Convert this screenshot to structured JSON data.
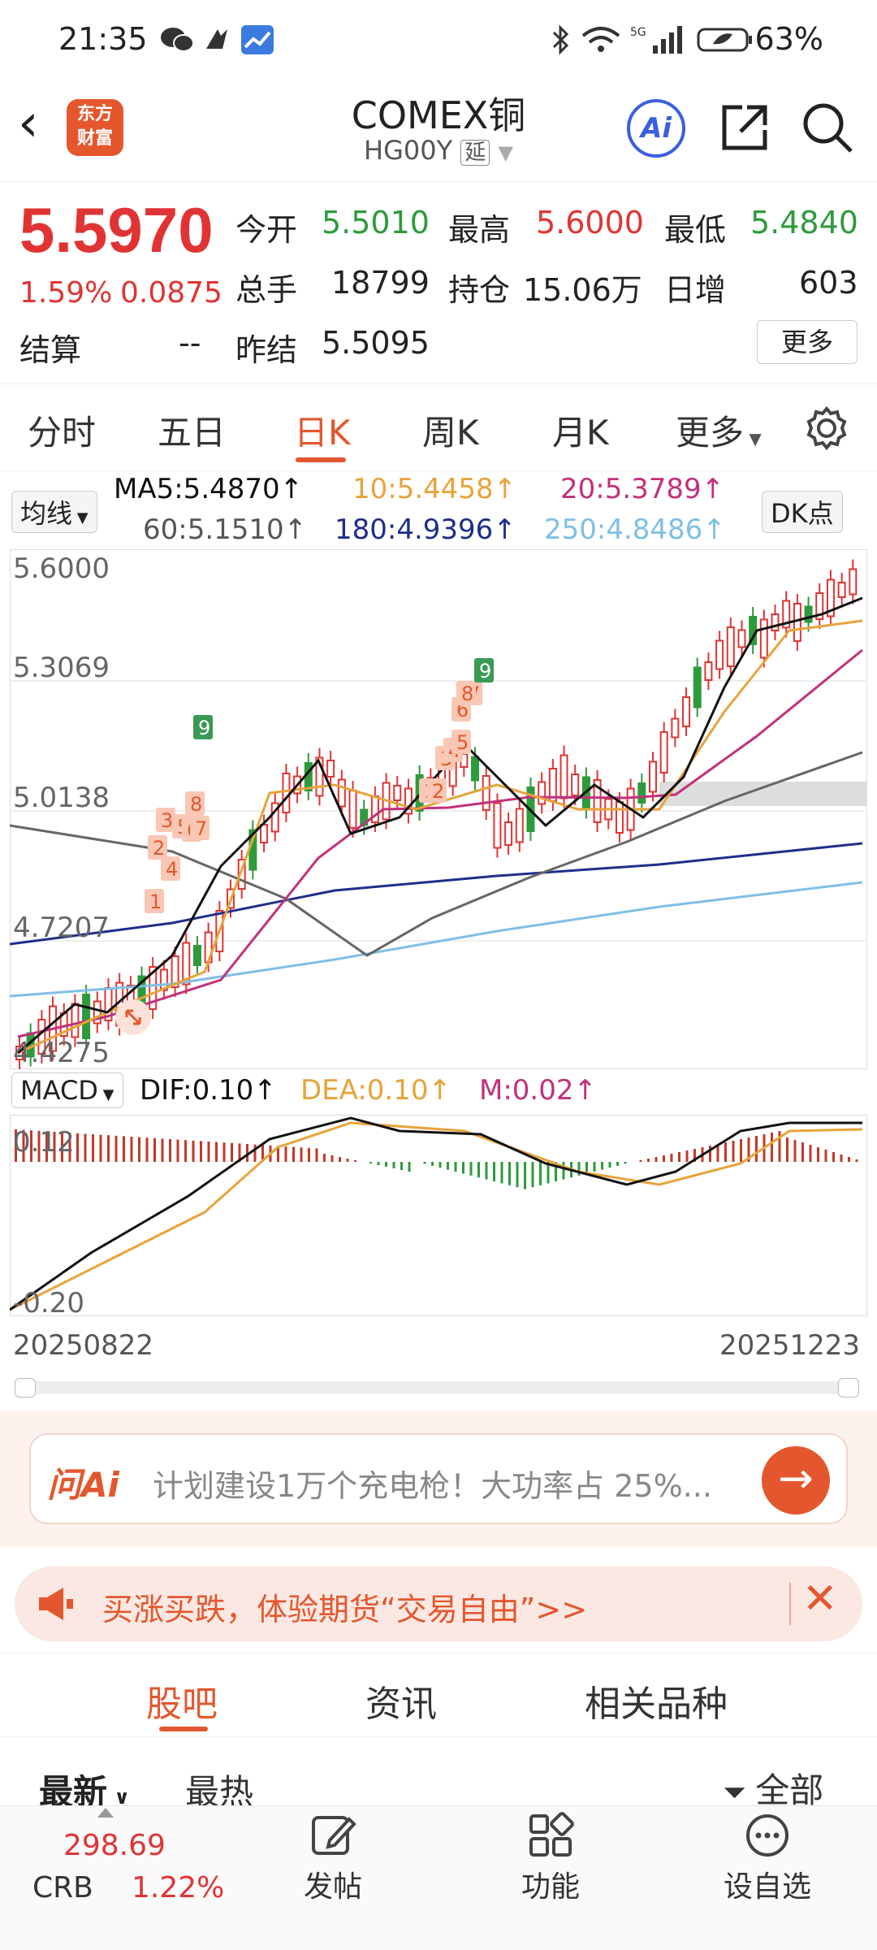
{
  "status": {
    "time": "21:35",
    "battery": "63%",
    "network": "5G"
  },
  "header": {
    "title": "COMEX铜",
    "code": "HG00Y",
    "delay_tag": "延",
    "logo_line1": "东方",
    "logo_line2": "财富",
    "ai_label": "Ai"
  },
  "quote": {
    "price": "5.5970",
    "change_pct": "1.59%",
    "change": "0.0875",
    "open_label": "今开",
    "open": "5.5010",
    "high_label": "最高",
    "high": "5.6000",
    "low_label": "最低",
    "low": "5.4840",
    "volume_label": "总手",
    "volume": "18799",
    "oi_label": "持仓",
    "oi": "15.06万",
    "daily_inc_label": "日增",
    "daily_inc": "603",
    "settle_label": "结算",
    "settle": "--",
    "prev_settle_label": "昨结",
    "prev_settle": "5.5095",
    "more_button": "更多"
  },
  "ktabs": [
    "分时",
    "五日",
    "日K",
    "周K",
    "月K",
    "更多"
  ],
  "ma": {
    "selector": "均线",
    "ma5": "MA5:5.4870↑",
    "ma10": "10:5.4458↑",
    "ma20": "20:5.3789↑",
    "ma60": "60:5.1510↑",
    "ma180": "180:4.9396↑",
    "ma250": "250:4.8486↑",
    "dk_button": "DK点"
  },
  "axis": {
    "y1": "5.6000",
    "y2": "5.3069",
    "y3": "5.0138",
    "y4": "4.7207",
    "y5": "4.4275",
    "date_start": "20250822",
    "date_end": "20251223"
  },
  "macd": {
    "selector": "MACD",
    "dif": "DIF:0.10↑",
    "dea": "DEA:0.10↑",
    "m": "M:0.02↑",
    "top": "0.12",
    "bottom": "-0.20"
  },
  "td_marks": [
    "1",
    "2",
    "3",
    "4",
    "5",
    "6",
    "7",
    "8",
    "9",
    "1",
    "2",
    "3",
    "4",
    "5",
    "6",
    "7",
    "8",
    "9"
  ],
  "ask_ai": {
    "brand": "问Ai",
    "text": "计划建设1万个充电枪！大功率占 25%..."
  },
  "ad": {
    "text": "买涨买跌，体验期货“交易自由”>>"
  },
  "btabs": [
    "股吧",
    "资讯",
    "相关品种"
  ],
  "sort": {
    "latest": "最新",
    "hot": "最热",
    "filter": "全部"
  },
  "bottom": {
    "crb_value": "298.69",
    "crb_label": "CRB",
    "crb_pct": "1.22%",
    "post": "发帖",
    "func": "功能",
    "watch": "设自选"
  },
  "colors": {
    "up": "#e03434",
    "down": "#2e9a3c",
    "accent": "#e4572e",
    "ma5": "#111111",
    "ma10": "#e8a33a",
    "ma20": "#c2307a",
    "ma60": "#666666",
    "ma180": "#1f2e8a",
    "ma250": "#7fbfe6"
  }
}
